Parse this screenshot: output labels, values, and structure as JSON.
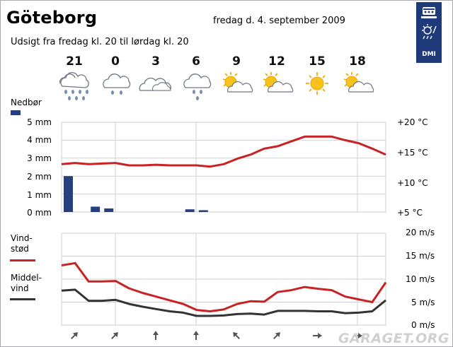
{
  "header": {
    "city": "Göteborg",
    "date": "fredag d. 4. september 2009",
    "subtitle": "Udsigt fra fredag kl. 20 til lørdag kl. 20",
    "logo_text": "DMI"
  },
  "forecast_hours": [
    {
      "hour": "21",
      "icon": "cloud-rain-icon"
    },
    {
      "hour": "0",
      "icon": "cloud-rain-icon"
    },
    {
      "hour": "3",
      "icon": "cloud-icon"
    },
    {
      "hour": "6",
      "icon": "cloud-rain-icon"
    },
    {
      "hour": "9",
      "icon": "sun-cloud-icon"
    },
    {
      "hour": "12",
      "icon": "sun-cloud-icon"
    },
    {
      "hour": "15",
      "icon": "sun-icon"
    },
    {
      "hour": "18",
      "icon": "sun-cloud-icon"
    }
  ],
  "labels": {
    "precip": "Nedbør",
    "gust": "Vind-\nstød",
    "mean_wind": "Middel-\nvind"
  },
  "colors": {
    "temperature": "#c82223",
    "gust": "#c82223",
    "mean_wind": "#333333",
    "precip_bar": "#273f7c"
  },
  "watermark": "GARAGET.ORG",
  "chart_data": [
    {
      "type": "bar+line",
      "left_axis": {
        "ticks": [
          "5 mm",
          "4 mm",
          "3 mm",
          "2 mm",
          "1 mm",
          "0 mm"
        ],
        "ylim": [
          0,
          5
        ]
      },
      "right_axis": {
        "ticks": [
          "+20 °C",
          "+15 °C",
          "+10 °C",
          "+5 °C"
        ],
        "ylim": [
          5,
          20
        ]
      },
      "precip_mm": [
        2.0,
        0,
        0.3,
        0.2,
        0,
        0,
        0,
        0,
        0,
        0.15,
        0.1,
        0,
        0,
        0,
        0,
        0,
        0,
        0,
        0,
        0,
        0,
        0,
        0,
        0
      ],
      "temperature_c": [
        13.0,
        13.2,
        13.0,
        13.1,
        13.2,
        12.8,
        12.8,
        12.9,
        12.8,
        12.8,
        12.8,
        12.6,
        13.0,
        13.9,
        14.6,
        15.6,
        16.0,
        16.8,
        17.6,
        17.6,
        17.6,
        17.0,
        16.5,
        15.6,
        14.6
      ]
    },
    {
      "type": "line",
      "right_axis": {
        "ticks": [
          "20 m/s",
          "15 m/s",
          "10 m/s",
          "5 m/s",
          "0 m/s"
        ],
        "ylim": [
          0,
          20
        ]
      },
      "series": [
        {
          "name": "Vindstød",
          "values": [
            13,
            13.5,
            9.5,
            9.5,
            9.6,
            8,
            7,
            6.2,
            5.4,
            4.6,
            3.3,
            3.0,
            3.4,
            4.6,
            5.2,
            5.1,
            7.2,
            7.6,
            8.3,
            7.9,
            7.6,
            6.2,
            5.6,
            5,
            9.3
          ]
        },
        {
          "name": "Middelvind",
          "values": [
            7.5,
            7.7,
            5.3,
            5.3,
            5.5,
            4.6,
            4,
            3.5,
            3,
            2.7,
            2,
            2,
            2.1,
            2.4,
            2.5,
            2.3,
            3.1,
            3.1,
            3.1,
            3,
            3,
            2.6,
            2.7,
            3,
            5.4
          ]
        }
      ]
    }
  ],
  "wind_direction_arrows": [
    "north-east",
    "north-east",
    "north",
    "north",
    "north-west",
    "north-east",
    "east",
    "east"
  ]
}
